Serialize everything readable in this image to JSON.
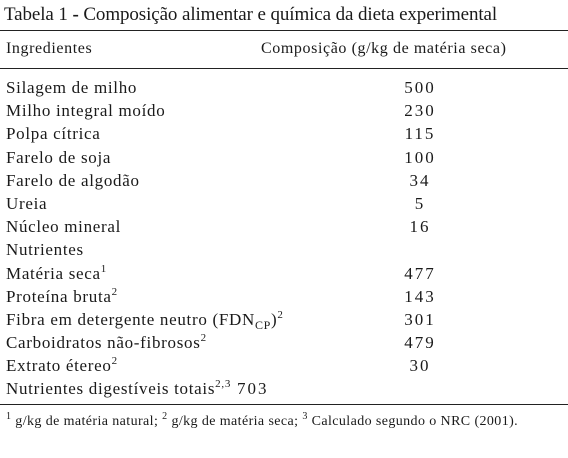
{
  "caption": {
    "label": "Tabela 1",
    "dash": " - ",
    "text": "Composição alimentar e química da dieta experimental"
  },
  "header": {
    "col1": "Ingredientes",
    "col2": "Composição (g/kg de matéria seca)"
  },
  "rows": [
    {
      "name": "Silagem de milho",
      "value": "500"
    },
    {
      "name": "Milho integral moído",
      "value": "230"
    },
    {
      "name": "Polpa cítrica",
      "value": "115"
    },
    {
      "name": "Farelo de soja",
      "value": "100"
    },
    {
      "name": "Farelo de algodão",
      "value": "34"
    },
    {
      "name": "Ureia",
      "value": "5"
    },
    {
      "name": "Núcleo mineral",
      "value": "16"
    },
    {
      "name": "Nutrientes",
      "value": ""
    },
    {
      "name": "Matéria seca",
      "sup": "1",
      "value": "477"
    },
    {
      "name": "Proteína bruta",
      "sup": "2",
      "value": "143"
    },
    {
      "name": "Fibra em detergente neutro (FDN",
      "sub": "CP",
      "after": ")",
      "sup": "2",
      "value": "301"
    },
    {
      "name": "Carboidratos não-fibrosos",
      "sup": "2",
      "value": "479"
    },
    {
      "name": "Extrato étereo",
      "sup": "2",
      "value": "30"
    },
    {
      "name": "Nutrientes digestíveis totais",
      "sup": "2,3",
      "value": "703"
    }
  ],
  "footnote": {
    "n1": "1",
    "t1": " g/kg de matéria natural; ",
    "n2": "2",
    "t2": " g/kg de matéria seca; ",
    "n3": "3",
    "t3": " Calculado segundo o NRC (2001)."
  }
}
